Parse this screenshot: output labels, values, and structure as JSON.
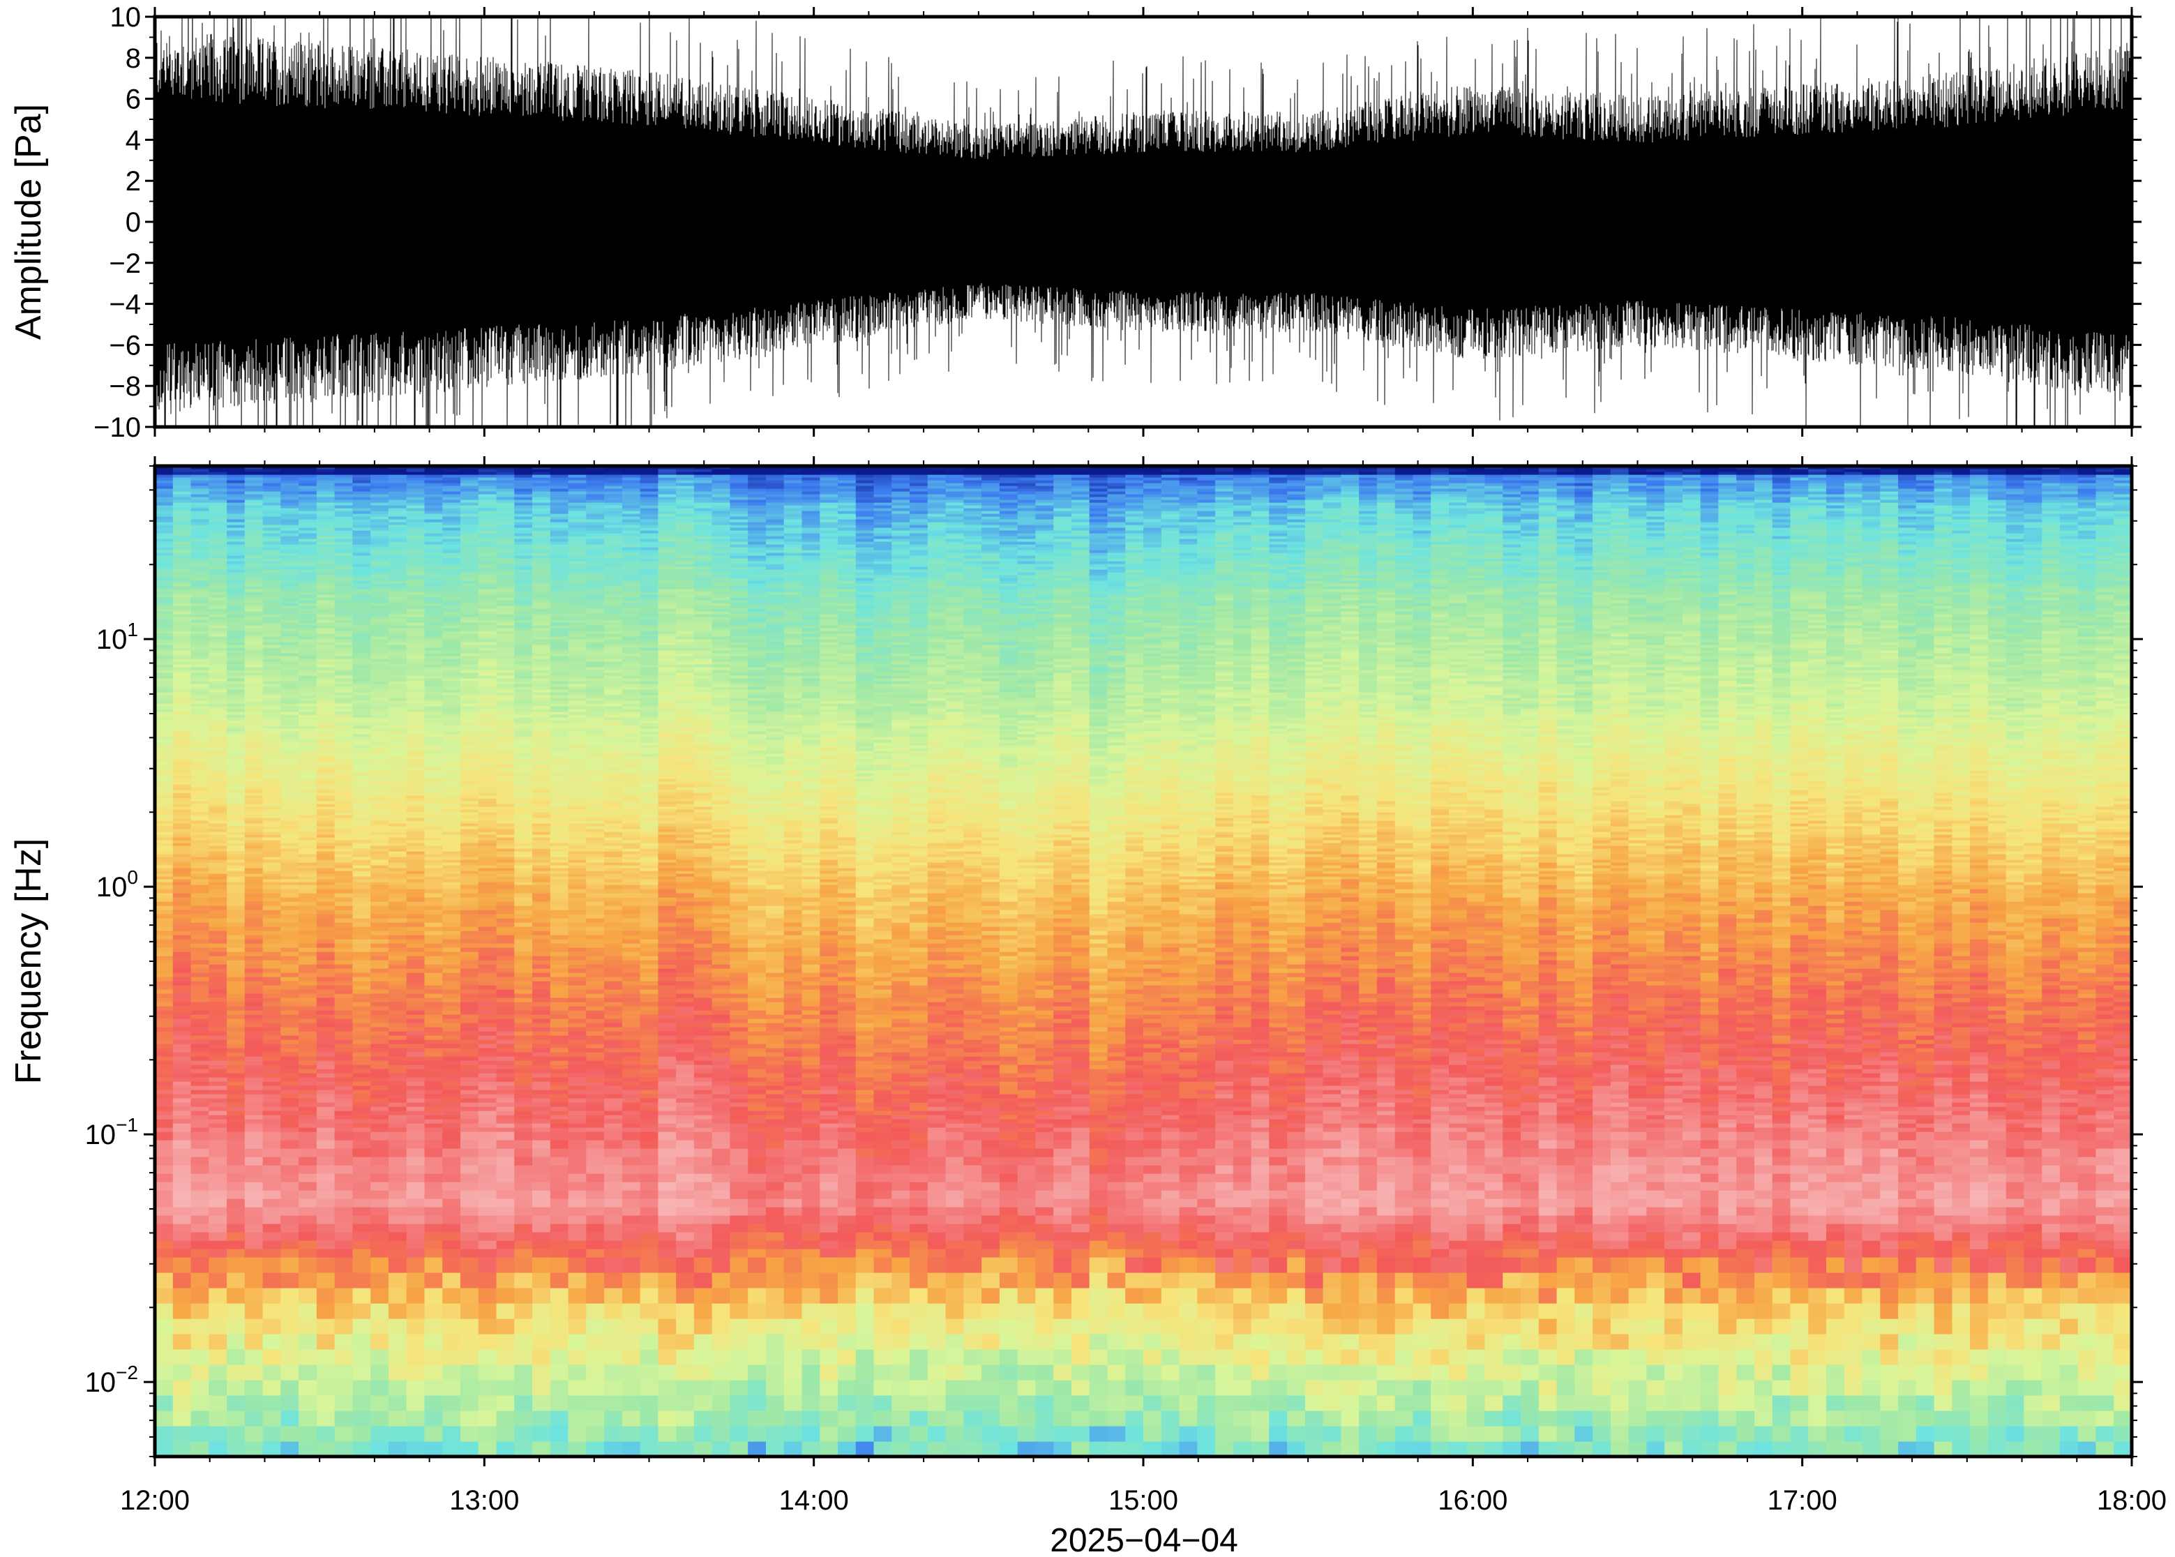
{
  "chart_data": [
    {
      "type": "line",
      "panel": "waveform",
      "title": "",
      "ylabel": "Amplitude [Pa]",
      "ylim": [
        -10,
        10
      ],
      "y_ticks": [
        10,
        8,
        6,
        4,
        2,
        0,
        -2,
        -4,
        -6,
        -8,
        -10
      ],
      "y_tick_labels": [
        "10",
        "8",
        "6",
        "4",
        "2",
        "0",
        "−2",
        "−4",
        "−6",
        "−8",
        "−10"
      ],
      "x_range": [
        "12:00",
        "18:00"
      ],
      "series_color": "#000000",
      "envelope_note_values": {
        "hours": [
          12.0,
          12.5,
          13.0,
          13.5,
          14.0,
          14.5,
          15.0,
          15.5,
          16.0,
          16.5,
          17.0,
          17.5,
          18.0
        ],
        "typical_peak": [
          7.0,
          6.5,
          6.0,
          5.5,
          4.5,
          3.5,
          4.0,
          4.0,
          5.0,
          4.5,
          5.0,
          5.5,
          6.5
        ]
      }
    },
    {
      "type": "heatmap",
      "panel": "spectrogram",
      "title": "",
      "ylabel": "Frequency [Hz]",
      "yscale": "log",
      "ylim": [
        0.005,
        50
      ],
      "y_ticks": [
        0.01,
        0.1,
        1,
        10
      ],
      "y_tick_labels": [
        {
          "base": "10",
          "exp": "−2"
        },
        {
          "base": "10",
          "exp": "−1"
        },
        {
          "base": "10",
          "exp": "0"
        },
        {
          "base": "10",
          "exp": "1"
        }
      ],
      "xlabel": "2025−04−04",
      "x_tick_labels": [
        "12:00",
        "13:00",
        "14:00",
        "15:00",
        "16:00",
        "17:00",
        "18:00"
      ],
      "x_ticks_hours": [
        12,
        13,
        14,
        15,
        16,
        17,
        18
      ],
      "colormap": [
        "#0a1a8c",
        "#3d7bf0",
        "#6de3e0",
        "#9fe8a8",
        "#d8f59a",
        "#f7e37a",
        "#f7a545",
        "#f35b5b",
        "#f6a3a3",
        "#fbc9c9"
      ]
    }
  ]
}
